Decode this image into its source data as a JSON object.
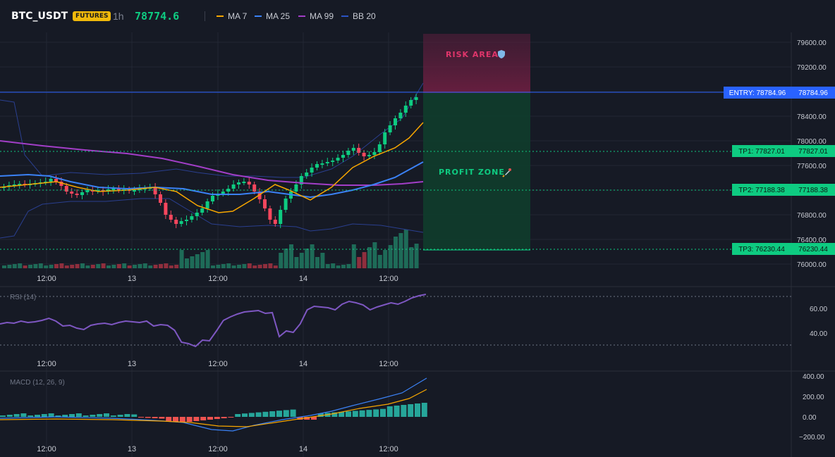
{
  "header": {
    "symbol": "BTC_USDT",
    "badge": "FUTURES",
    "timeframe": "1h",
    "price": "78774.6"
  },
  "indicators": [
    {
      "label": "MA 7",
      "color": "#f7a600"
    },
    {
      "label": "MA 25",
      "color": "#3b82f6"
    },
    {
      "label": "MA 99",
      "color": "#a23ec7"
    },
    {
      "label": "BB 20",
      "color": "#2a53c4"
    }
  ],
  "price_axis": {
    "ticks": [
      "79600.00",
      "79200.00",
      "78400.00",
      "78000.00",
      "77600.00",
      "76800.00",
      "76400.00",
      "76000.00"
    ]
  },
  "time_axis": {
    "ticks": [
      "12:00",
      "13",
      "12:00",
      "14",
      "12:00"
    ]
  },
  "zones": {
    "risk_label": "RISK AREA",
    "profit_label": "PROFIT ZONE"
  },
  "levels": {
    "entry": {
      "label": "ENTRY: 78784.96",
      "value": "78784.96"
    },
    "tp1": {
      "label": "TP1: 77827.01",
      "value": "77827.01"
    },
    "tp2": {
      "label": "TP2: 77188.38",
      "value": "77188.38"
    },
    "tp3": {
      "label": "TP3: 76230.44",
      "value": "76230.44"
    }
  },
  "rsi": {
    "title": "RSI (14)",
    "ticks": [
      "60.00",
      "40.00"
    ]
  },
  "macd": {
    "title": "MACD (12, 26, 9)",
    "ticks": [
      "400.00",
      "200.00",
      "0.00",
      "−200.00"
    ]
  },
  "colors": {
    "up": "#0ecb81",
    "down": "#f6465d",
    "entry": "#2962ff",
    "rsi": "#7e57c2"
  }
}
